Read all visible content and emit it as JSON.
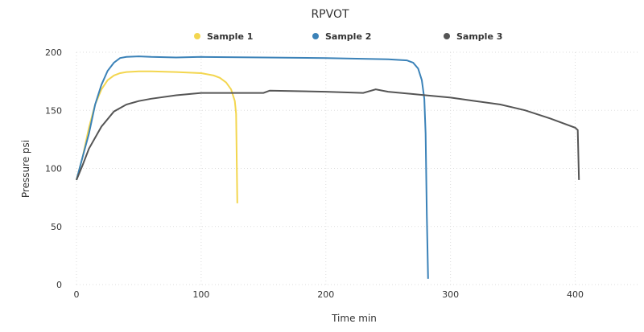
{
  "chart_data": {
    "type": "line",
    "title": "RPVOT",
    "x_label": "Time min",
    "y_label": "Pressure psi",
    "xlim": [
      0,
      450
    ],
    "ylim": [
      0,
      200
    ],
    "xticks": [
      0,
      100,
      200,
      300,
      400
    ],
    "yticks": [
      0,
      50,
      100,
      150,
      200
    ],
    "grid": true,
    "legend": "top",
    "series": [
      {
        "name": "Sample 1",
        "color": "#f3d64f",
        "x": [
          0,
          5,
          10,
          15,
          20,
          25,
          30,
          35,
          40,
          50,
          60,
          80,
          100,
          110,
          115,
          120,
          124,
          127,
          128,
          129
        ],
        "values": [
          90,
          110,
          135,
          155,
          168,
          176,
          180,
          182,
          183,
          183.5,
          183.5,
          183,
          182,
          180,
          178,
          174,
          168,
          158,
          147,
          70
        ]
      },
      {
        "name": "Sample 2",
        "color": "#3b82b8",
        "x": [
          0,
          5,
          10,
          15,
          20,
          25,
          30,
          35,
          40,
          50,
          60,
          80,
          100,
          150,
          200,
          250,
          265,
          270,
          274,
          277,
          279,
          280,
          281,
          282
        ],
        "values": [
          90,
          110,
          130,
          155,
          172,
          184,
          191,
          195,
          196,
          196.5,
          196,
          195.5,
          196,
          195.5,
          195,
          194,
          193,
          191,
          186,
          176,
          160,
          130,
          60,
          5
        ]
      },
      {
        "name": "Sample 3",
        "color": "#555555",
        "x": [
          0,
          5,
          10,
          20,
          30,
          40,
          50,
          60,
          80,
          100,
          150,
          155,
          200,
          230,
          240,
          250,
          270,
          280,
          300,
          320,
          340,
          360,
          380,
          400,
          402,
          403
        ],
        "values": [
          90,
          103,
          117,
          136,
          149,
          155,
          158,
          160,
          163,
          165,
          165,
          167,
          166,
          165,
          168,
          166,
          164,
          163,
          161,
          158,
          155,
          150,
          143,
          135,
          133,
          90
        ]
      }
    ]
  }
}
